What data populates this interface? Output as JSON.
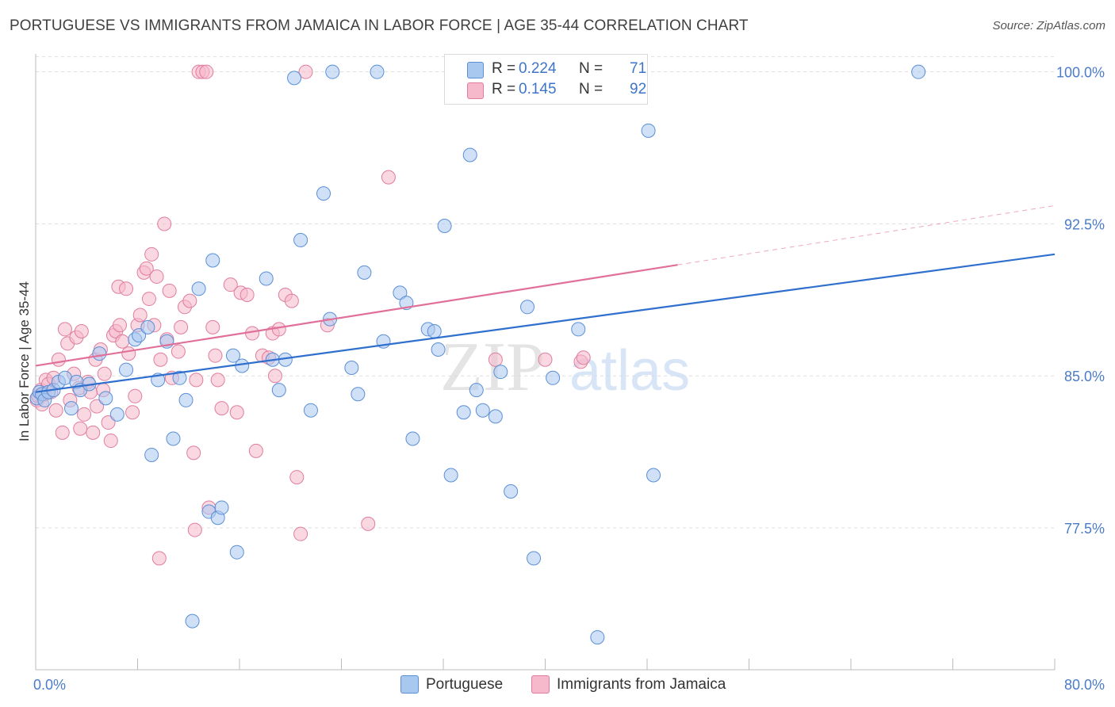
{
  "title": "PORTUGUESE VS IMMIGRANTS FROM JAMAICA IN LABOR FORCE | AGE 35-44 CORRELATION CHART",
  "source": "Source: ZipAtlas.com",
  "watermark": {
    "zip": "ZIP",
    "atlas": "atlas"
  },
  "legend": {
    "series1": {
      "r_label": "R =",
      "r_value": "0.224",
      "n_label": "N =",
      "n_value": "71"
    },
    "series2": {
      "r_label": "R =",
      "r_value": "0.145",
      "n_label": "N =",
      "n_value": "92"
    }
  },
  "colors": {
    "blue_fill": "#a9c8f0",
    "blue_stroke": "#5a8fd6",
    "blue_line": "#2f6fcd",
    "pink_fill": "#f6b8cb",
    "pink_stroke": "#e07d9e",
    "pink_line": "#e0709a",
    "grid": "#dddddd",
    "tick_text": "#4a7cc9"
  },
  "chart_data": {
    "type": "scatter",
    "title": "PORTUGUESE VS IMMIGRANTS FROM JAMAICA IN LABOR FORCE | AGE 35-44 CORRELATION CHART",
    "xlabel": "",
    "ylabel": "In Labor Force | Age 35-44",
    "xlim": [
      0,
      80
    ],
    "ylim": [
      70.5,
      101.2
    ],
    "x_tick_labels": [
      "0.0%",
      "80.0%"
    ],
    "y_ticks": [
      77.5,
      85.0,
      92.5,
      100.0
    ],
    "y_tick_labels": [
      "77.5%",
      "85.0%",
      "92.5%",
      "100.0%"
    ],
    "grid": true,
    "series": [
      {
        "name": "Portuguese",
        "r": 0.224,
        "n": 71,
        "trend": {
          "x": [
            0,
            80
          ],
          "y": [
            84.2,
            91.0
          ],
          "dashed_from": null
        },
        "points": [
          [
            0.1,
            83.9
          ],
          [
            0.3,
            84.2
          ],
          [
            0.5,
            84.1
          ],
          [
            0.7,
            83.8
          ],
          [
            1.0,
            84.2
          ],
          [
            1.4,
            84.3
          ],
          [
            1.8,
            84.7
          ],
          [
            2.3,
            84.9
          ],
          [
            2.8,
            83.4
          ],
          [
            3.2,
            84.7
          ],
          [
            3.5,
            84.3
          ],
          [
            4.2,
            84.6
          ],
          [
            5.0,
            86.1
          ],
          [
            5.5,
            83.9
          ],
          [
            6.4,
            83.1
          ],
          [
            7.1,
            85.3
          ],
          [
            7.8,
            86.8
          ],
          [
            8.1,
            87.0
          ],
          [
            8.8,
            87.4
          ],
          [
            9.1,
            81.1
          ],
          [
            9.6,
            84.8
          ],
          [
            10.3,
            86.7
          ],
          [
            10.8,
            81.9
          ],
          [
            11.3,
            84.9
          ],
          [
            11.8,
            83.8
          ],
          [
            12.3,
            72.9
          ],
          [
            12.8,
            89.3
          ],
          [
            13.6,
            78.3
          ],
          [
            13.9,
            90.7
          ],
          [
            14.3,
            78.0
          ],
          [
            14.6,
            78.5
          ],
          [
            15.8,
            76.3
          ],
          [
            15.5,
            86.0
          ],
          [
            16.2,
            85.5
          ],
          [
            18.1,
            89.8
          ],
          [
            18.6,
            85.8
          ],
          [
            19.1,
            84.3
          ],
          [
            19.6,
            85.8
          ],
          [
            20.3,
            99.7
          ],
          [
            20.8,
            91.7
          ],
          [
            21.6,
            83.3
          ],
          [
            22.6,
            94.0
          ],
          [
            23.1,
            87.8
          ],
          [
            23.3,
            100.0
          ],
          [
            24.8,
            85.4
          ],
          [
            25.3,
            84.1
          ],
          [
            25.8,
            90.1
          ],
          [
            26.8,
            100.0
          ],
          [
            27.3,
            86.7
          ],
          [
            28.6,
            89.1
          ],
          [
            29.1,
            88.6
          ],
          [
            29.6,
            81.9
          ],
          [
            30.8,
            87.3
          ],
          [
            31.3,
            87.2
          ],
          [
            31.6,
            86.3
          ],
          [
            32.1,
            92.4
          ],
          [
            32.6,
            80.1
          ],
          [
            33.6,
            83.2
          ],
          [
            34.1,
            95.9
          ],
          [
            34.6,
            84.3
          ],
          [
            35.1,
            83.3
          ],
          [
            36.1,
            83.0
          ],
          [
            36.5,
            85.2
          ],
          [
            37.3,
            79.3
          ],
          [
            38.6,
            88.4
          ],
          [
            39.1,
            76.0
          ],
          [
            40.6,
            84.9
          ],
          [
            42.6,
            87.3
          ],
          [
            44.1,
            72.1
          ],
          [
            48.1,
            97.1
          ],
          [
            48.5,
            80.1
          ],
          [
            69.3,
            100.0
          ]
        ]
      },
      {
        "name": "Immigrants from Jamaica",
        "r": 0.145,
        "n": 92,
        "trend": {
          "x": [
            0,
            80
          ],
          "y": [
            85.5,
            93.4
          ],
          "dashed_from": 50.4
        },
        "points": [
          [
            0.1,
            83.8
          ],
          [
            0.2,
            84.0
          ],
          [
            0.4,
            84.3
          ],
          [
            0.5,
            83.6
          ],
          [
            0.7,
            84.1
          ],
          [
            0.8,
            84.8
          ],
          [
            1.0,
            84.6
          ],
          [
            1.2,
            84.2
          ],
          [
            1.4,
            84.9
          ],
          [
            1.6,
            83.3
          ],
          [
            1.8,
            85.8
          ],
          [
            2.1,
            82.2
          ],
          [
            2.3,
            87.3
          ],
          [
            2.5,
            86.6
          ],
          [
            2.7,
            83.8
          ],
          [
            3.0,
            85.1
          ],
          [
            3.2,
            86.9
          ],
          [
            3.4,
            84.4
          ],
          [
            3.5,
            82.4
          ],
          [
            3.6,
            87.2
          ],
          [
            3.8,
            83.1
          ],
          [
            4.1,
            84.7
          ],
          [
            4.3,
            84.2
          ],
          [
            4.5,
            82.2
          ],
          [
            4.7,
            85.8
          ],
          [
            4.8,
            83.5
          ],
          [
            5.1,
            86.3
          ],
          [
            5.3,
            84.3
          ],
          [
            5.4,
            85.1
          ],
          [
            5.7,
            82.7
          ],
          [
            5.9,
            81.8
          ],
          [
            6.1,
            87.0
          ],
          [
            6.3,
            87.2
          ],
          [
            6.5,
            89.4
          ],
          [
            6.6,
            87.5
          ],
          [
            6.8,
            86.7
          ],
          [
            7.1,
            89.3
          ],
          [
            7.3,
            86.1
          ],
          [
            7.6,
            83.2
          ],
          [
            7.8,
            84.0
          ],
          [
            8.0,
            87.5
          ],
          [
            8.2,
            88.0
          ],
          [
            8.5,
            90.1
          ],
          [
            8.7,
            90.3
          ],
          [
            8.9,
            88.8
          ],
          [
            9.1,
            91.0
          ],
          [
            9.3,
            87.5
          ],
          [
            9.5,
            89.9
          ],
          [
            9.7,
            76.0
          ],
          [
            9.8,
            85.8
          ],
          [
            10.1,
            92.5
          ],
          [
            10.3,
            86.8
          ],
          [
            10.5,
            89.2
          ],
          [
            10.7,
            84.9
          ],
          [
            11.2,
            86.2
          ],
          [
            11.4,
            87.4
          ],
          [
            11.7,
            88.4
          ],
          [
            12.1,
            88.7
          ],
          [
            12.4,
            81.2
          ],
          [
            12.5,
            77.4
          ],
          [
            12.6,
            84.8
          ],
          [
            12.8,
            100.0
          ],
          [
            13.1,
            100.0
          ],
          [
            13.4,
            100.0
          ],
          [
            13.6,
            78.5
          ],
          [
            13.9,
            87.4
          ],
          [
            14.1,
            86.0
          ],
          [
            14.3,
            84.8
          ],
          [
            14.6,
            83.4
          ],
          [
            15.3,
            89.5
          ],
          [
            15.8,
            83.2
          ],
          [
            16.1,
            89.1
          ],
          [
            16.6,
            89.0
          ],
          [
            17.0,
            87.1
          ],
          [
            17.3,
            81.3
          ],
          [
            17.8,
            86.0
          ],
          [
            18.3,
            85.9
          ],
          [
            18.6,
            87.1
          ],
          [
            18.8,
            85.0
          ],
          [
            19.1,
            87.3
          ],
          [
            19.6,
            89.0
          ],
          [
            20.1,
            88.7
          ],
          [
            20.5,
            80.0
          ],
          [
            20.8,
            77.2
          ],
          [
            21.2,
            100.0
          ],
          [
            22.9,
            87.5
          ],
          [
            26.1,
            77.7
          ],
          [
            27.7,
            94.8
          ],
          [
            36.1,
            85.8
          ],
          [
            40.0,
            85.8
          ],
          [
            42.8,
            85.7
          ],
          [
            43.0,
            85.9
          ]
        ]
      }
    ]
  },
  "bottom_legend": {
    "series1_label": "Portuguese",
    "series2_label": "Immigrants from Jamaica"
  }
}
